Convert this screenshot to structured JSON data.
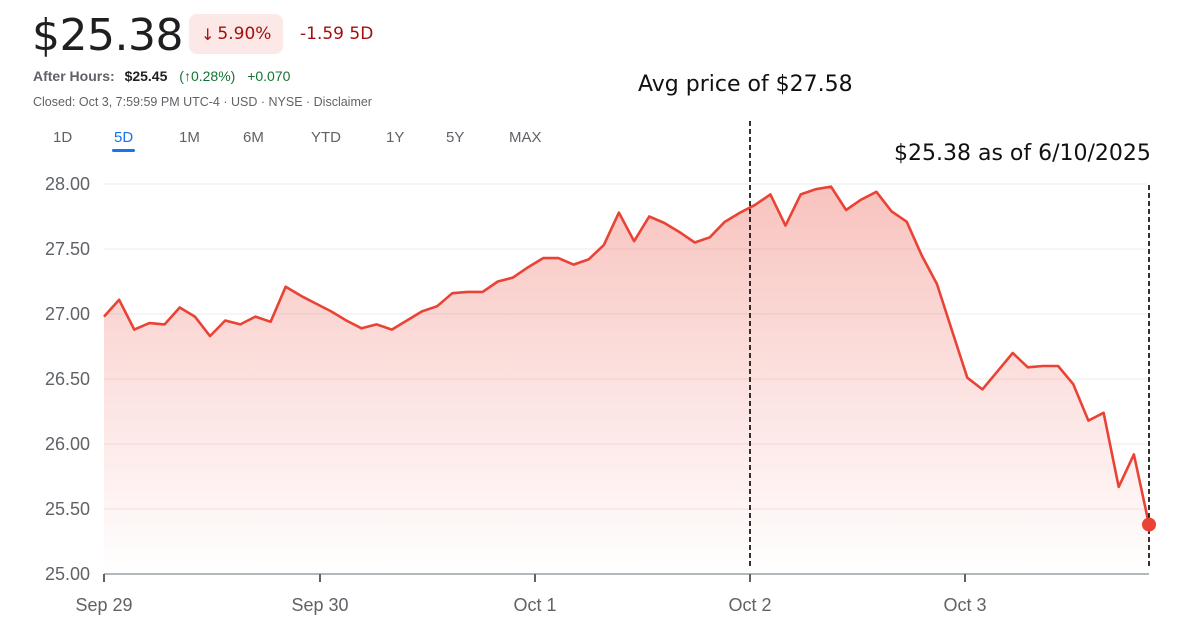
{
  "header": {
    "price": "$25.38",
    "change_pct": "5.90%",
    "change_direction": "down",
    "change_abs": "-1.59 5D",
    "after_hours_label": "After Hours:",
    "after_hours_price": "$25.45",
    "after_hours_pct": "(↑0.28%)",
    "after_hours_abs": "+0.070",
    "closed_info": "Closed: Oct 3, 7:59:59 PM UTC-4 · USD · NYSE · Disclaimer"
  },
  "tabs": [
    {
      "label": "1D",
      "active": false
    },
    {
      "label": "5D",
      "active": true
    },
    {
      "label": "1M",
      "active": false
    },
    {
      "label": "6M",
      "active": false
    },
    {
      "label": "YTD",
      "active": false
    },
    {
      "label": "1Y",
      "active": false
    },
    {
      "label": "5Y",
      "active": false
    },
    {
      "label": "MAX",
      "active": false
    }
  ],
  "annotations": {
    "avg_label": "Avg price of $27.58",
    "last_label": "$25.38 as of 6/10/2025"
  },
  "colors": {
    "line": "#ea4335",
    "negative": "#a50e0e",
    "positive": "#137333",
    "accent": "#1a73e8",
    "badge_bg": "#fce8e6"
  },
  "chart_data": {
    "type": "area",
    "title": "",
    "xlabel": "",
    "ylabel": "",
    "ylim": [
      25.0,
      28.0
    ],
    "yticks": [
      "28.00",
      "27.50",
      "27.00",
      "26.50",
      "26.00",
      "25.50",
      "25.00"
    ],
    "xticks": [
      "Sep 29",
      "Sep 30",
      "Oct 1",
      "Oct 2",
      "Oct 3"
    ],
    "grid": true,
    "legend": "none",
    "series": [
      {
        "name": "Price",
        "values": [
          26.98,
          27.11,
          26.88,
          26.93,
          26.92,
          27.05,
          26.98,
          26.83,
          26.95,
          26.92,
          26.98,
          26.94,
          27.21,
          27.14,
          27.08,
          27.02,
          26.95,
          26.89,
          26.92,
          26.88,
          26.95,
          27.02,
          27.06,
          27.16,
          27.17,
          27.17,
          27.25,
          27.28,
          27.36,
          27.43,
          27.43,
          27.38,
          27.42,
          27.53,
          27.78,
          27.56,
          27.75,
          27.7,
          27.63,
          27.55,
          27.59,
          27.71,
          27.78,
          27.84,
          27.92,
          27.68,
          27.92,
          27.96,
          27.98,
          27.8,
          27.88,
          27.94,
          27.79,
          27.71,
          27.45,
          27.23,
          26.87,
          26.51,
          26.42,
          26.56,
          26.7,
          26.59,
          26.6,
          26.6,
          26.46,
          26.18,
          26.24,
          25.67,
          25.92,
          25.38
        ]
      }
    ],
    "reference_lines": [
      {
        "type": "vertical",
        "at": "Oct 2",
        "label": "Avg price of $27.58",
        "style": "dashed"
      },
      {
        "type": "vertical",
        "at": "end",
        "label": "$25.38 as of 6/10/2025",
        "style": "dashed"
      }
    ],
    "last_point": 25.38
  }
}
